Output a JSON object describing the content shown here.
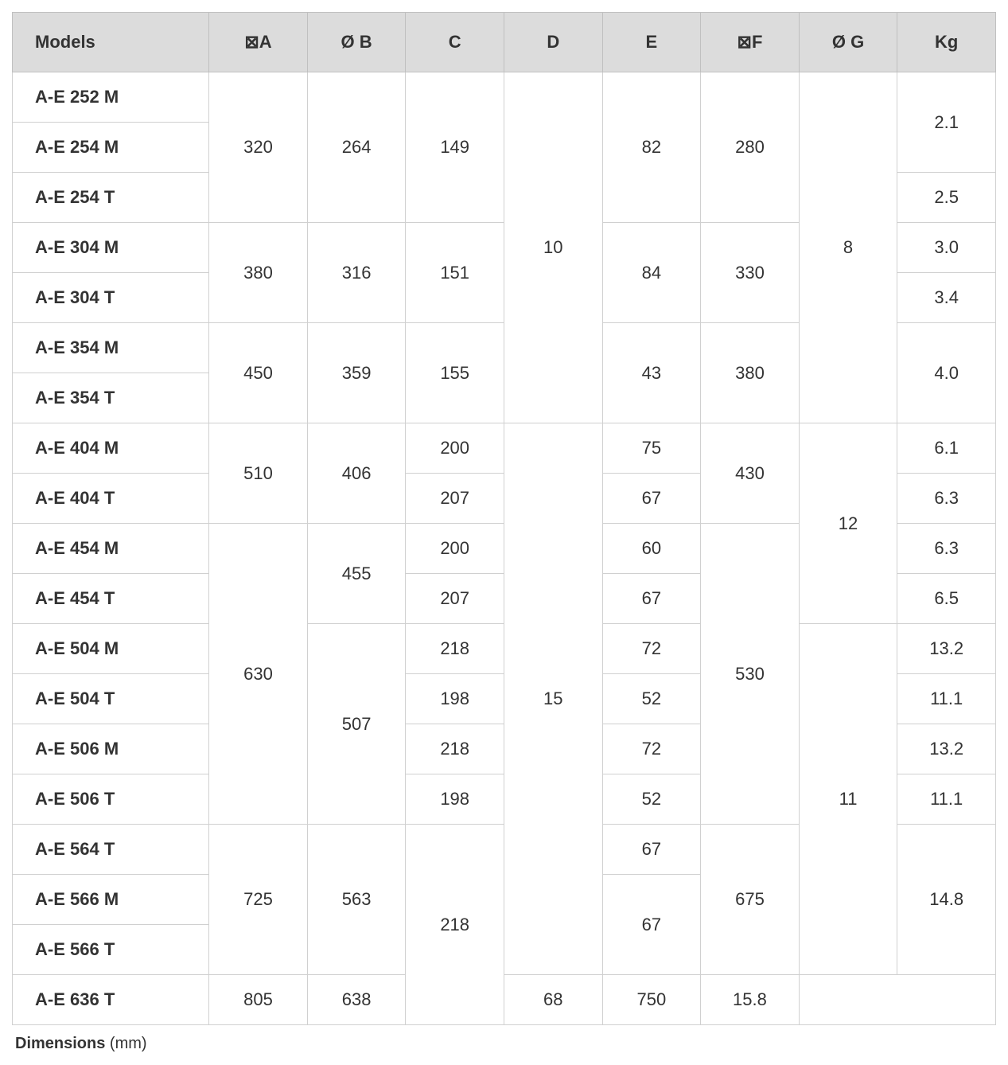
{
  "table": {
    "type": "table",
    "header_bg": "#dcdcdc",
    "border_color": "#d0d0d0",
    "font_family": "Arial",
    "header_fontsize": 22,
    "cell_fontsize": 22,
    "text_color": "#333333",
    "columns": [
      {
        "label": "Models",
        "symbol": ""
      },
      {
        "label": "A",
        "symbol": "⊠"
      },
      {
        "label": "B",
        "symbol": "Ø "
      },
      {
        "label": "C",
        "symbol": ""
      },
      {
        "label": "D",
        "symbol": ""
      },
      {
        "label": "E",
        "symbol": ""
      },
      {
        "label": "F",
        "symbol": "⊠"
      },
      {
        "label": "G",
        "symbol": "Ø "
      },
      {
        "label": "Kg",
        "symbol": ""
      }
    ],
    "column_widths": [
      "20%",
      "10%",
      "10%",
      "10%",
      "10%",
      "10%",
      "10%",
      "10%",
      "10%"
    ],
    "rows": [
      {
        "model": "A-E 252 M",
        "A": {
          "v": "320",
          "rs": 3
        },
        "B": {
          "v": "264",
          "rs": 3
        },
        "C": {
          "v": "149",
          "rs": 3
        },
        "D": {
          "v": "10",
          "rs": 7
        },
        "E": {
          "v": "82",
          "rs": 3
        },
        "F": {
          "v": "280",
          "rs": 3
        },
        "G": {
          "v": "8",
          "rs": 7
        },
        "Kg": {
          "v": "2.1",
          "rs": 2
        }
      },
      {
        "model": "A-E 254 M"
      },
      {
        "model": "A-E 254 T",
        "Kg": {
          "v": "2.5",
          "rs": 1
        }
      },
      {
        "model": "A-E 304 M",
        "A": {
          "v": "380",
          "rs": 2
        },
        "B": {
          "v": "316",
          "rs": 2
        },
        "C": {
          "v": "151",
          "rs": 2
        },
        "E": {
          "v": "84",
          "rs": 2
        },
        "F": {
          "v": "330",
          "rs": 2
        },
        "Kg": {
          "v": "3.0",
          "rs": 1
        }
      },
      {
        "model": "A-E 304 T",
        "Kg": {
          "v": "3.4",
          "rs": 1
        }
      },
      {
        "model": "A-E 354 M",
        "A": {
          "v": "450",
          "rs": 2
        },
        "B": {
          "v": "359",
          "rs": 2
        },
        "C": {
          "v": "155",
          "rs": 2
        },
        "E": {
          "v": "43",
          "rs": 2
        },
        "F": {
          "v": "380",
          "rs": 2
        },
        "Kg": {
          "v": "4.0",
          "rs": 2
        }
      },
      {
        "model": "A-E 354 T"
      },
      {
        "model": "A-E 404 M",
        "A": {
          "v": "510",
          "rs": 2
        },
        "B": {
          "v": "406",
          "rs": 2
        },
        "C": {
          "v": "200",
          "rs": 1
        },
        "D": {
          "v": "15",
          "rs": 11
        },
        "E": {
          "v": "75",
          "rs": 1
        },
        "F": {
          "v": "430",
          "rs": 2
        },
        "G": {
          "v": "12",
          "rs": 4
        },
        "Kg": {
          "v": "6.1",
          "rs": 1
        }
      },
      {
        "model": "A-E 404 T",
        "C": {
          "v": "207",
          "rs": 1
        },
        "E": {
          "v": "67",
          "rs": 1
        },
        "Kg": {
          "v": "6.3",
          "rs": 1
        }
      },
      {
        "model": "A-E 454 M",
        "A": {
          "v": "630",
          "rs": 6
        },
        "B": {
          "v": "455",
          "rs": 2
        },
        "C": {
          "v": "200",
          "rs": 1
        },
        "E": {
          "v": "60",
          "rs": 1
        },
        "F": {
          "v": "530",
          "rs": 6
        },
        "Kg": {
          "v": "6.3",
          "rs": 1
        }
      },
      {
        "model": "A-E 454 T",
        "C": {
          "v": "207",
          "rs": 1
        },
        "E": {
          "v": "67",
          "rs": 1
        },
        "Kg": {
          "v": "6.5",
          "rs": 1
        }
      },
      {
        "model": "A-E 504 M",
        "B": {
          "v": "507",
          "rs": 4
        },
        "C": {
          "v": "218",
          "rs": 1
        },
        "E": {
          "v": "72",
          "rs": 1
        },
        "G": {
          "v": "11",
          "rs": 7
        },
        "Kg": {
          "v": "13.2",
          "rs": 1
        }
      },
      {
        "model": "A-E 504 T",
        "C": {
          "v": "198",
          "rs": 1
        },
        "E": {
          "v": "52",
          "rs": 1
        },
        "Kg": {
          "v": "11.1",
          "rs": 1
        }
      },
      {
        "model": "A-E 506 M",
        "C": {
          "v": "218",
          "rs": 1
        },
        "E": {
          "v": "72",
          "rs": 1
        },
        "Kg": {
          "v": "13.2",
          "rs": 1
        }
      },
      {
        "model": "A-E 506 T",
        "C": {
          "v": "198",
          "rs": 1
        },
        "E": {
          "v": "52",
          "rs": 1
        },
        "Kg": {
          "v": "11.1",
          "rs": 1
        }
      },
      {
        "model": "A-E 564 T",
        "A": {
          "v": "725",
          "rs": 3
        },
        "B": {
          "v": "563",
          "rs": 3
        },
        "C": {
          "v": "218",
          "rs": 4
        },
        "E": {
          "v": "67",
          "rs": 1
        },
        "F": {
          "v": "675",
          "rs": 3
        },
        "Kg": {
          "v": "14.8",
          "rs": 3
        }
      },
      {
        "model": "A-E 566 M",
        "E": {
          "v": "67",
          "rs": 2
        }
      },
      {
        "model": "A-E 566 T"
      },
      {
        "model": "A-E 636 T",
        "A": {
          "v": "805",
          "rs": 1
        },
        "B": {
          "v": "638",
          "rs": 1
        },
        "E": {
          "v": "68",
          "rs": 1
        },
        "F": {
          "v": "750",
          "rs": 1
        },
        "Kg": {
          "v": "15.8",
          "rs": 1
        }
      }
    ]
  },
  "caption": {
    "bold": "Dimensions",
    "rest": " (mm)"
  }
}
